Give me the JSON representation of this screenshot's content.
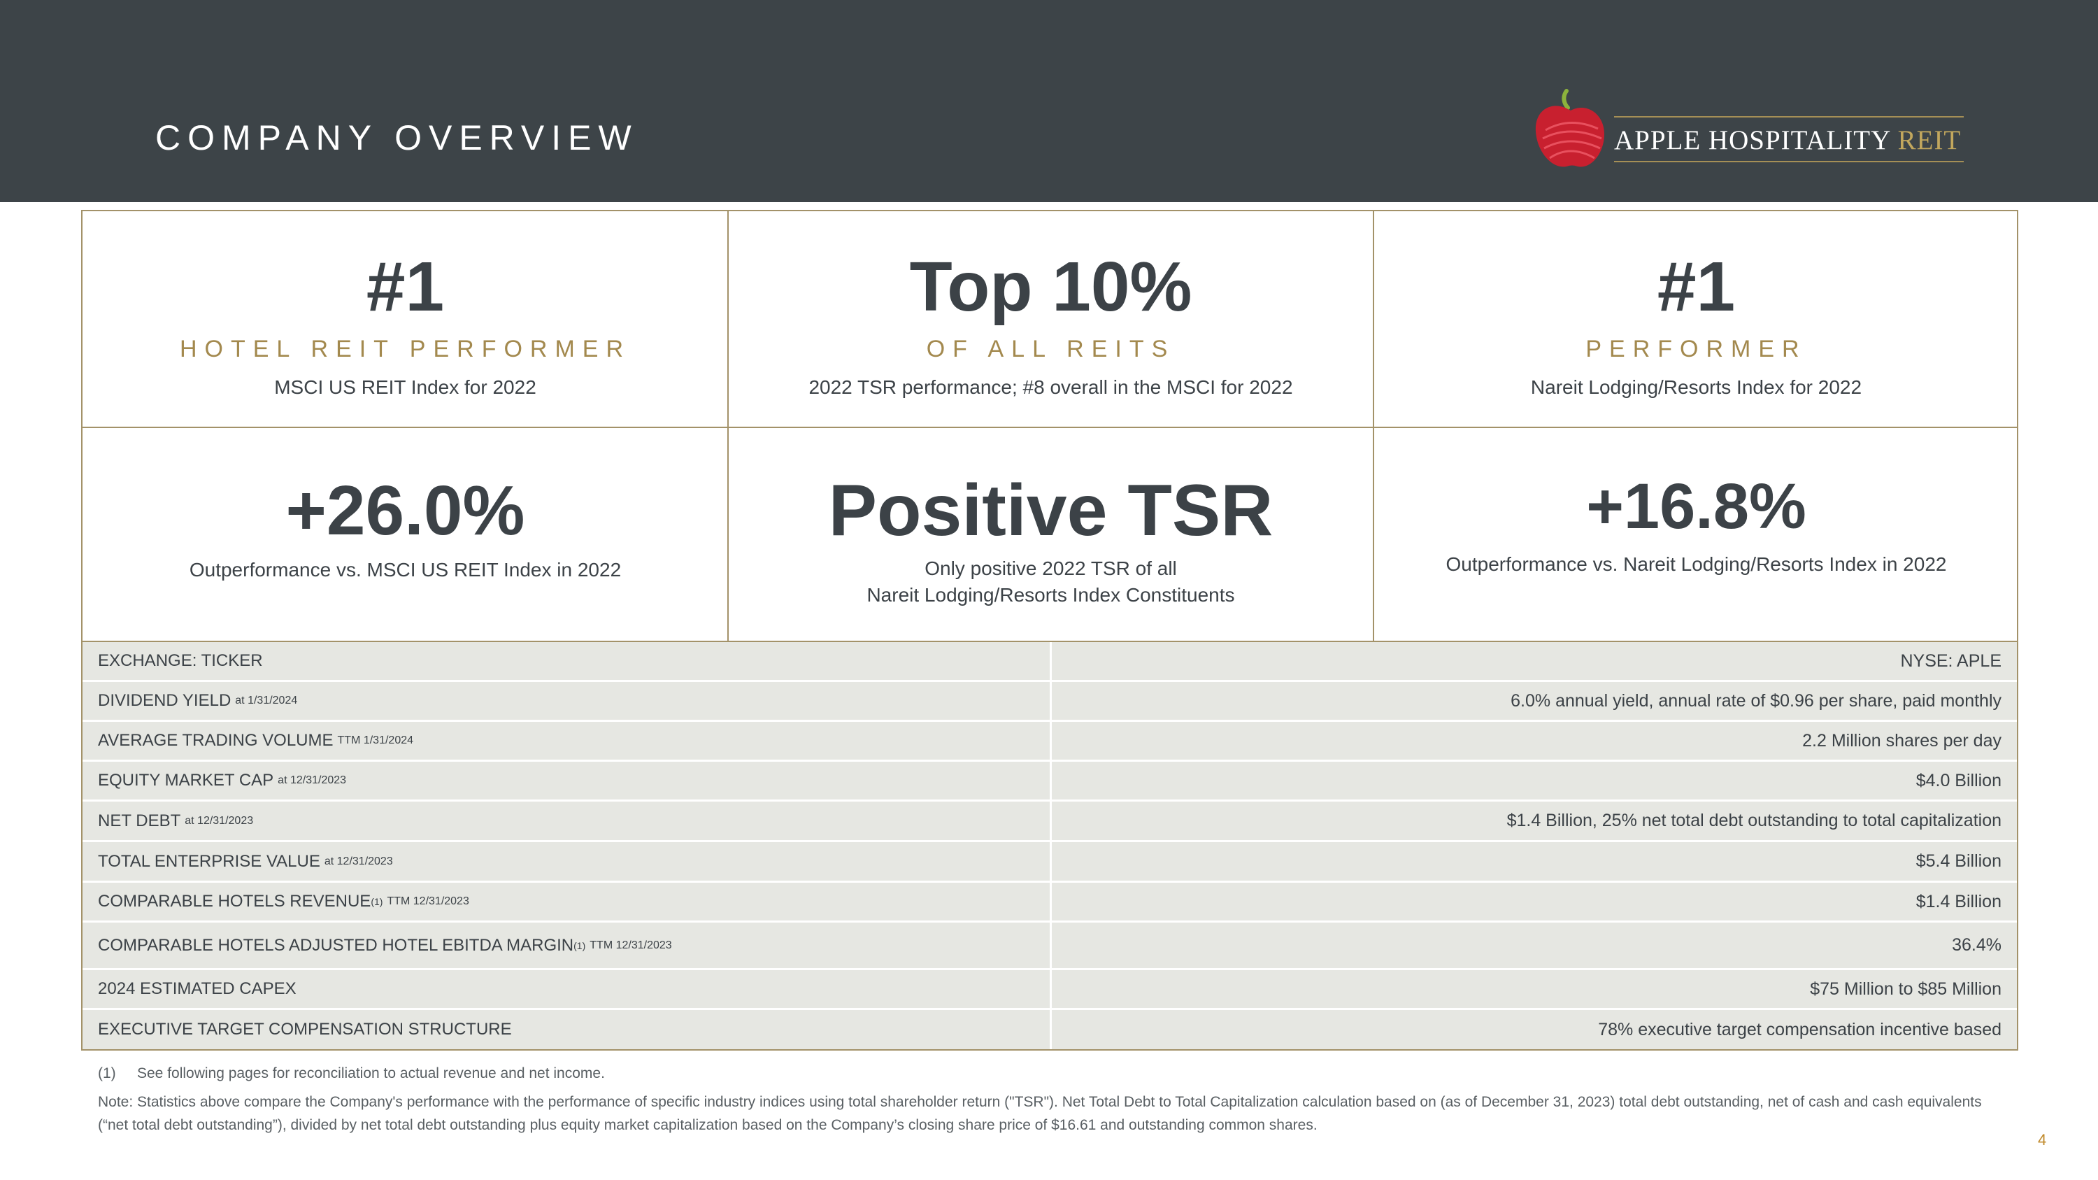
{
  "header": {
    "title": "COMPANY OVERVIEW",
    "logo": {
      "name": "APPLE HOSPITALITY",
      "suffix": "REIT",
      "icon": "apple-icon"
    }
  },
  "stats": [
    {
      "big": "#1",
      "label": "HOTEL REIT PERFORMER",
      "desc": "MSCI US REIT Index for 2022"
    },
    {
      "big": "Top 10%",
      "label": "OF ALL REITS",
      "desc": "2022 TSR performance; #8 overall in the MSCI for 2022"
    },
    {
      "big": "#1",
      "label": "PERFORMER",
      "desc": "Nareit Lodging/Resorts Index for 2022"
    },
    {
      "big": "+26.0%",
      "desc": "Outperformance vs. MSCI US REIT Index in 2022"
    },
    {
      "big": "Positive TSR",
      "desc_line1": "Only positive 2022 TSR of all",
      "desc_line2": "Nareit Lodging/Resorts Index Constituents"
    },
    {
      "big": "+16.8%",
      "desc": "Outperformance vs. Nareit Lodging/Resorts Index in 2022"
    }
  ],
  "table": {
    "rows": [
      {
        "label": "EXCHANGE: TICKER",
        "note": "",
        "value": "NYSE: APLE"
      },
      {
        "label": "DIVIDEND YIELD",
        "note": "at 1/31/2024",
        "value": "6.0% annual yield, annual rate of $0.96 per share, paid monthly"
      },
      {
        "label": "AVERAGE TRADING VOLUME",
        "note": "TTM 1/31/2024",
        "value": "2.2 Million shares per day"
      },
      {
        "label": "EQUITY MARKET CAP",
        "note": "at 12/31/2023",
        "value": "$4.0 Billion"
      },
      {
        "label": "NET DEBT",
        "note": "at 12/31/2023",
        "value": "$1.4 Billion, 25% net total debt outstanding to total capitalization"
      },
      {
        "label": "TOTAL ENTERPRISE VALUE",
        "note": "at 12/31/2023",
        "value": "$5.4 Billion"
      },
      {
        "label": "COMPARABLE HOTELS REVENUE",
        "sup": "(1)",
        "note": "TTM 12/31/2023",
        "value": "$1.4 Billion"
      },
      {
        "label": "COMPARABLE HOTELS ADJUSTED HOTEL EBITDA MARGIN",
        "sup": "(1)",
        "note": "TTM 12/31/2023",
        "value": "36.4%"
      },
      {
        "label": "2024 ESTIMATED CAPEX",
        "note": "",
        "value": "$75 Million to $85 Million"
      },
      {
        "label": "EXECUTIVE TARGET COMPENSATION STRUCTURE",
        "note": "",
        "value": "78% executive target compensation incentive based"
      }
    ]
  },
  "footnotes": {
    "fn1_num": "(1)",
    "fn1_text": "See following pages for reconciliation to actual revenue and net income.",
    "note": "Note: Statistics above compare the Company's performance with the performance of specific industry indices using total shareholder return (\"TSR\"). Net Total Debt to Total Capitalization calculation based on (as of December 31, 2023) total debt outstanding, net of cash and cash equivalents (“net total debt outstanding”), divided by net total debt outstanding plus equity market capitalization based on the Company’s closing share price of $16.61 and outstanding common shares."
  },
  "page_number": "4",
  "colors": {
    "header_bg": "#3d4448",
    "gold": "#a3894e",
    "border": "#a39269",
    "row_bg": "#e6e7e2",
    "page_number": "#c08a2b"
  }
}
